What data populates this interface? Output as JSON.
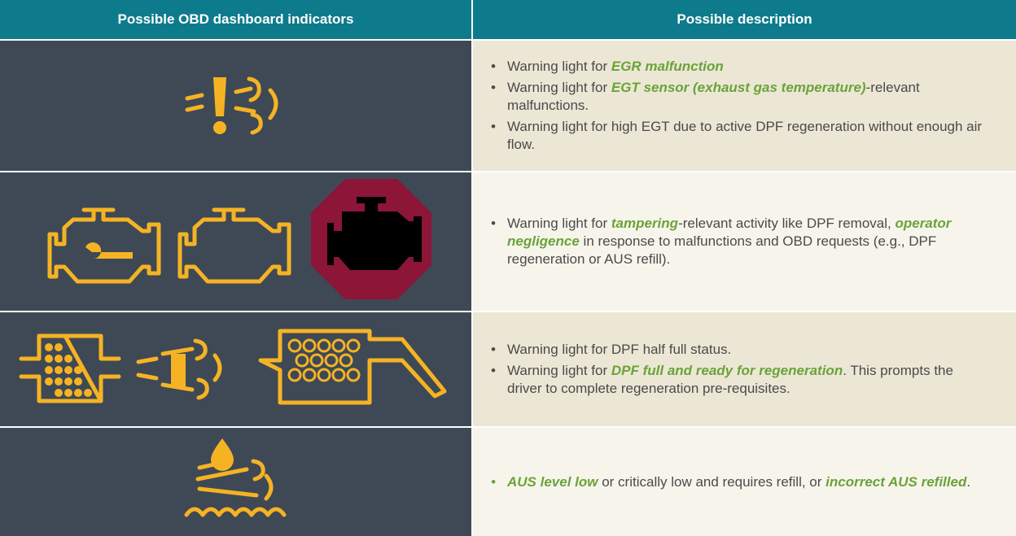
{
  "table": {
    "header": [
      "Possible OBD dashboard indicators",
      "Possible description"
    ],
    "rows": [
      {
        "bullets": [
          [
            "Warning light for ",
            {
              "text": "EGR malfunction",
              "em": true
            }
          ],
          [
            "Warning light for ",
            {
              "text": "EGT sensor (exhaust gas temperature)",
              "em": true
            },
            "-relevant malfunctions."
          ],
          [
            "Warning light for high EGT due to active DPF regeneration without enough air flow."
          ]
        ]
      },
      {
        "bullets": [
          [
            "Warning light for ",
            {
              "text": "tampering",
              "em": true
            },
            "-relevant activity like DPF removal, ",
            {
              "text": "operator negligence",
              "em": true
            },
            " in response to malfunctions and OBD requests (e.g., DPF regeneration or AUS refill)."
          ]
        ]
      },
      {
        "bullets": [
          [
            "Warning light for DPF half full status."
          ],
          [
            "Warning light for ",
            {
              "text": "DPF full and ready for regeneration",
              "em": true
            },
            ". This prompts the driver to complete regeneration pre-requisites."
          ]
        ]
      },
      {
        "bullets": [
          [
            {
              "text": "AUS level low",
              "em": true
            },
            " or critically low and requires refill, or ",
            {
              "text": "incorrect AUS refilled",
              "em": true
            },
            "."
          ]
        ]
      }
    ]
  }
}
